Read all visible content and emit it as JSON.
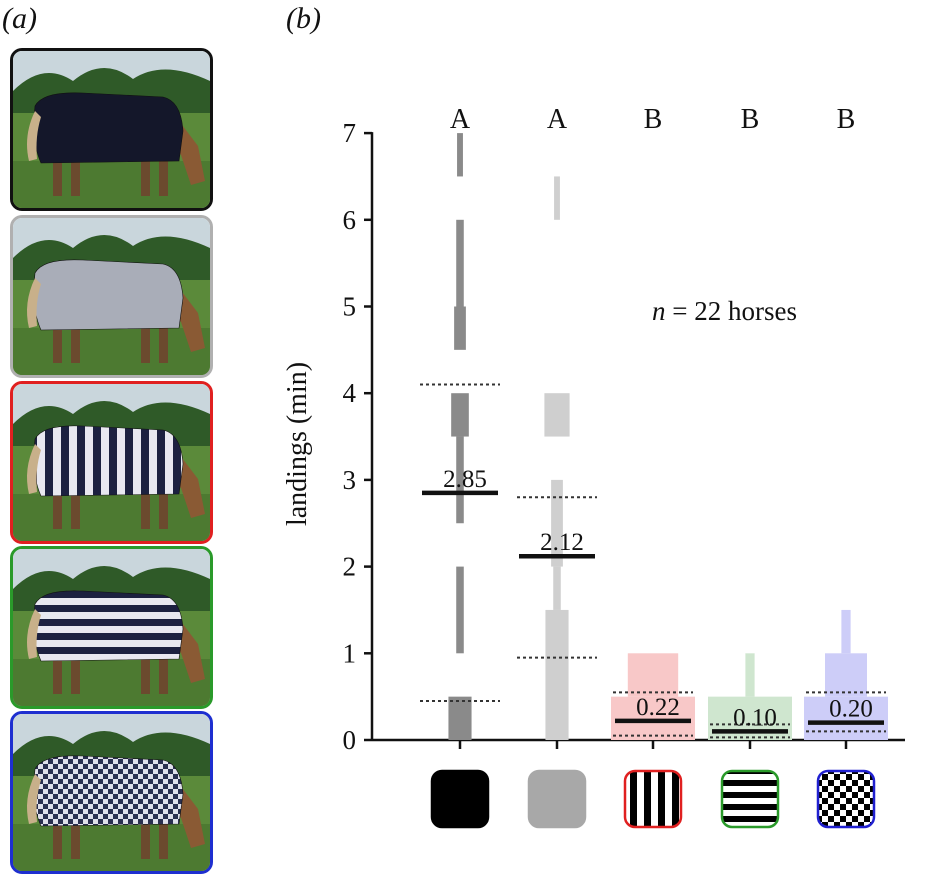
{
  "panels": {
    "a": "(a)",
    "b": "(b)"
  },
  "photos": [
    {
      "name": "black-rug-horse",
      "border": "#111111",
      "rug": "solid",
      "rug_color": "#14172a"
    },
    {
      "name": "grey-rug-horse",
      "border": "#b0b0b0",
      "rug": "solid",
      "rug_color": "#a9adb8"
    },
    {
      "name": "vertical-stripe-rug-horse",
      "border": "#e02020",
      "rug": "vstripes",
      "rug_color": "#1c2140"
    },
    {
      "name": "horizontal-stripe-rug-horse",
      "border": "#2a9a2a",
      "rug": "hstripes",
      "rug_color": "#1c2140"
    },
    {
      "name": "check-rug-horse",
      "border": "#1e2fd0",
      "rug": "check",
      "rug_color": "#2a3050"
    }
  ],
  "chart_data": {
    "type": "bar",
    "ylabel": "landings (min)",
    "ylim": [
      0,
      7
    ],
    "yticks": [
      "0",
      "1",
      "2",
      "3",
      "4",
      "5",
      "6",
      "7"
    ],
    "annotation": {
      "italic": "n",
      "rest": " = 22 horses"
    },
    "categories": [
      "black",
      "grey",
      "vertical stripes",
      "horizontal stripes",
      "check"
    ],
    "group_letters": [
      "A",
      "A",
      "B",
      "B",
      "B"
    ],
    "means": [
      2.85,
      2.12,
      0.22,
      0.1,
      0.2
    ],
    "mean_labels": [
      "2.85",
      "2.12",
      "0.22",
      "0.10",
      "0.20"
    ],
    "dotted_lines": [
      [
        0.45,
        4.1
      ],
      [
        0.95,
        2.8
      ],
      [
        0.05,
        0.55
      ],
      [
        0.03,
        0.18
      ],
      [
        0.1,
        0.55
      ]
    ],
    "colors": [
      "#8a8a8a",
      "#cfcfcf",
      "#f8c8c8",
      "#cfe6cf",
      "#cdcdf8"
    ],
    "swatch_borders": [
      "#000000",
      "#a8a8a8",
      "#e02020",
      "#2a9a2a",
      "#2020d0"
    ],
    "swatch_patterns": [
      "solid-black",
      "solid-grey",
      "vstripes",
      "hstripes",
      "check"
    ],
    "distribution_segments": [
      [
        [
          0,
          0.5,
          0.55
        ],
        [
          1,
          2,
          0.18
        ],
        [
          2.5,
          3.5,
          0.18
        ],
        [
          3.5,
          4.0,
          0.42
        ],
        [
          4.5,
          5.0,
          0.28
        ],
        [
          5.0,
          6.0,
          0.18
        ],
        [
          6.5,
          7.0,
          0.14
        ]
      ],
      [
        [
          0,
          1.5,
          0.55
        ],
        [
          1.5,
          2.0,
          0.18
        ],
        [
          2.0,
          3.0,
          0.28
        ],
        [
          3.5,
          4.0,
          0.6
        ],
        [
          6.0,
          6.5,
          0.14
        ]
      ],
      [
        [
          0,
          0.5,
          2.0
        ],
        [
          0.5,
          1.0,
          1.2
        ]
      ],
      [
        [
          0,
          0.5,
          2.0
        ],
        [
          0.5,
          1.0,
          0.22
        ]
      ],
      [
        [
          0,
          0.5,
          2.0
        ],
        [
          0.5,
          1.0,
          1.0
        ],
        [
          1.0,
          1.5,
          0.22
        ]
      ]
    ]
  }
}
